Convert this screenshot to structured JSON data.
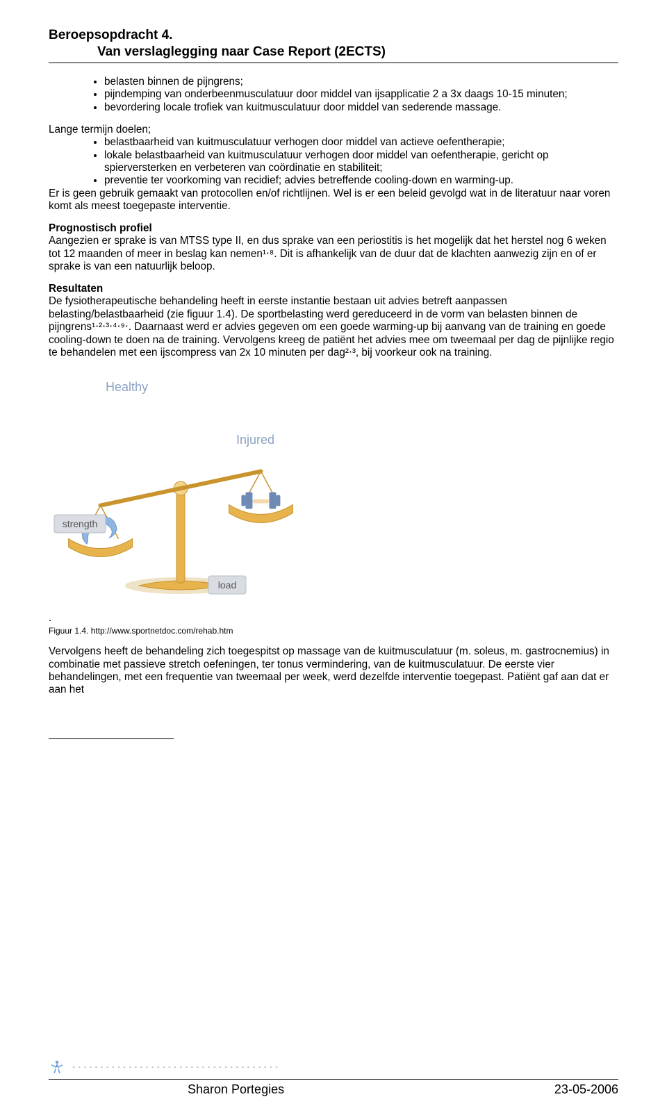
{
  "header": {
    "title": "Beroepsopdracht 4.",
    "subtitle": "Van verslaglegging naar Case Report  (2ECTS)"
  },
  "bullets_top": [
    "belasten binnen de pijngrens;",
    "pijndemping van onderbeenmusculatuur door middel van ijsapplicatie 2 a 3x daags 10-15 minuten;",
    "bevordering locale trofiek van kuitmusculatuur door middel van sederende massage."
  ],
  "lt_label": "Lange termijn doelen;",
  "bullets_lt": [
    "belastbaarheid van kuitmusculatuur verhogen door middel van actieve oefentherapie;",
    "lokale belastbaarheid van kuitmusculatuur verhogen door middel van oefentherapie, gericht op spierversterken en verbeteren van coördinatie en stabiliteit;",
    "preventie ter voorkoming van recidief; advies betreffende cooling-down en warming-up."
  ],
  "lt_after": "Er is geen gebruik gemaakt van protocollen en/of richtlijnen. Wel is er een beleid gevolgd wat in de literatuur naar voren komt als meest toegepaste interventie.",
  "prognostisch": {
    "label": "Prognostisch profiel",
    "text": "Aangezien er sprake is van MTSS type II, en dus sprake van een periostitis is het mogelijk dat het herstel nog 6 weken tot 12 maanden of meer in beslag kan nemen¹⋅⁸. Dit is afhankelijk van de duur dat de klachten aanwezig zijn en of er sprake is van een natuurlijk beloop."
  },
  "resultaten": {
    "label": "Resultaten",
    "text": "De fysiotherapeutische behandeling heeft in eerste instantie bestaan uit advies betreft aanpassen belasting/belastbaarheid (zie figuur 1.4). De sportbelasting werd gereduceerd in de vorm van belasten binnen de pijngrens¹⋅²⋅³⋅⁴⋅⁹⋅. Daarnaast werd er advies gegeven om een goede warming-up bij aanvang van de training en goede cooling-down te doen na de training. Vervolgens kreeg de patiënt het advies mee om tweemaal per dag de pijnlijke regio te behandelen met een ijscompress van 2x 10 minuten per dag²⋅³, bij voorkeur ook na training."
  },
  "figure": {
    "label_healthy": "Healthy",
    "label_injured": "Injured",
    "label_strength": "strength",
    "label_load": "load",
    "caption_dot": ".",
    "caption": "Figuur 1.4. http://www.sportnetdoc.com/rehab.htm",
    "colors": {
      "text_blue": "#8aa3c4",
      "gold": "#e6b34d",
      "gold_dark": "#c9942e",
      "gold_light": "#f3d38a",
      "blue_arm": "#8fb6e2",
      "blue_arm_dark": "#6892c4",
      "grey_light": "#cfd3d8",
      "grey_mid": "#aeb3ba",
      "grey_dark": "#6d7077",
      "tag_fill": "#d9dde3",
      "tag_border": "#b7bdc6",
      "dumbbell_blue": "#6f89b5",
      "dumbbell_handle": "#f4d9b0",
      "shadow": "#e4cf9f",
      "background": "#ffffff"
    },
    "tilt_deg": -12
  },
  "post_figure": "Vervolgens heeft de behandeling zich toegespitst op massage van de kuitmusculatuur (m. soleus, m. gastrocnemius) in combinatie met passieve stretch oefeningen, ter tonus vermindering,  van de kuitmusculatuur. De eerste vier behandelingen, met een frequentie van tweemaal per week,  werd dezelfde interventie toegepast. Patiënt gaf aan dat er aan het",
  "footer": {
    "name": "Sharon Portegies",
    "date": "23-05-2006"
  }
}
